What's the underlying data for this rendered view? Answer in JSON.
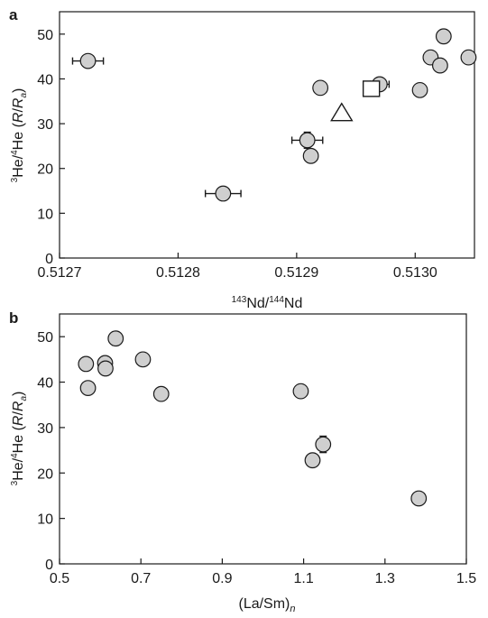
{
  "colors": {
    "marker_fill": "#cfcfcf",
    "open_marker_fill": "#ffffff",
    "ink": "#1a1a1a"
  },
  "chart_data": [
    {
      "panel": "a",
      "type": "scatter",
      "xlabel": "143Nd/144Nd",
      "ylabel": "3He/4He (R/Ra)",
      "xlim": [
        0.5127,
        0.51305
      ],
      "ylim": [
        0,
        55
      ],
      "xticks": [
        "0.5127",
        "0.5128",
        "0.5129",
        "0.5130"
      ],
      "yticks": [
        "0",
        "10",
        "20",
        "30",
        "40",
        "50"
      ],
      "grid": false,
      "legend": "none",
      "points": [
        {
          "x": 0.512724,
          "y": 44.0,
          "shape": "circle",
          "xerr": 1.3e-05
        },
        {
          "x": 0.512838,
          "y": 14.4,
          "shape": "circle",
          "xerr": 1.5e-05
        },
        {
          "x": 0.512909,
          "y": 26.3,
          "shape": "circle",
          "xerr": 1.3e-05,
          "yerr": 1.8
        },
        {
          "x": 0.512912,
          "y": 22.8,
          "shape": "circle",
          "yerr": 1.0
        },
        {
          "x": 0.51292,
          "y": 38.0,
          "shape": "circle",
          "xerr": 5e-06
        },
        {
          "x": 0.51297,
          "y": 38.8,
          "shape": "circle",
          "xerr": 8e-06,
          "yerr": 1.0
        },
        {
          "x": 0.513004,
          "y": 37.5,
          "shape": "circle"
        },
        {
          "x": 0.513013,
          "y": 44.8,
          "shape": "circle"
        },
        {
          "x": 0.513021,
          "y": 43.0,
          "shape": "circle",
          "xerr": 5e-06
        },
        {
          "x": 0.513024,
          "y": 49.5,
          "shape": "circle",
          "yerr": 1.5
        },
        {
          "x": 0.513045,
          "y": 44.8,
          "shape": "circle"
        },
        {
          "x": 0.512938,
          "y": 32.3,
          "shape": "triangle"
        },
        {
          "x": 0.512963,
          "y": 37.8,
          "shape": "square"
        }
      ]
    },
    {
      "panel": "b",
      "type": "scatter",
      "xlabel": "(La/Sm)n",
      "ylabel": "3He/4He (R/Ra)",
      "xlim": [
        0.5,
        1.5
      ],
      "ylim": [
        0,
        55
      ],
      "xticks": [
        "0.5",
        "0.7",
        "0.9",
        "1.1",
        "1.3",
        "1.5"
      ],
      "yticks": [
        "0",
        "10",
        "20",
        "30",
        "40",
        "50"
      ],
      "grid": false,
      "legend": "none",
      "points": [
        {
          "x": 0.565,
          "y": 44.0,
          "shape": "circle"
        },
        {
          "x": 0.57,
          "y": 38.7,
          "shape": "circle"
        },
        {
          "x": 0.612,
          "y": 44.2,
          "shape": "circle"
        },
        {
          "x": 0.613,
          "y": 43.0,
          "shape": "circle"
        },
        {
          "x": 0.638,
          "y": 49.6,
          "shape": "circle",
          "yerr": 1.5
        },
        {
          "x": 0.705,
          "y": 45.0,
          "shape": "circle"
        },
        {
          "x": 0.75,
          "y": 37.4,
          "shape": "circle"
        },
        {
          "x": 1.093,
          "y": 38.0,
          "shape": "circle"
        },
        {
          "x": 1.122,
          "y": 22.8,
          "shape": "circle"
        },
        {
          "x": 1.148,
          "y": 26.3,
          "shape": "circle",
          "yerr": 1.8
        },
        {
          "x": 1.383,
          "y": 14.4,
          "shape": "circle"
        }
      ]
    }
  ],
  "panels": {
    "a": {
      "letter": "a",
      "ylabel": {
        "sup1": "3",
        "main1": "He/",
        "sup2": "4",
        "main2": "He (",
        "it1": "R",
        "slash": "/",
        "it2": "R",
        "sub": "a",
        "close": ")"
      },
      "xlabel": {
        "sup1": "143",
        "main1": "Nd/",
        "sup2": "144",
        "main2": "Nd"
      }
    },
    "b": {
      "letter": "b",
      "ylabel": {
        "sup1": "3",
        "main1": "He/",
        "sup2": "4",
        "main2": "He (",
        "it1": "R",
        "slash": "/",
        "it2": "R",
        "sub": "a",
        "close": ")"
      },
      "xlabel": {
        "main": "(La/Sm)",
        "sub": "n"
      }
    }
  }
}
